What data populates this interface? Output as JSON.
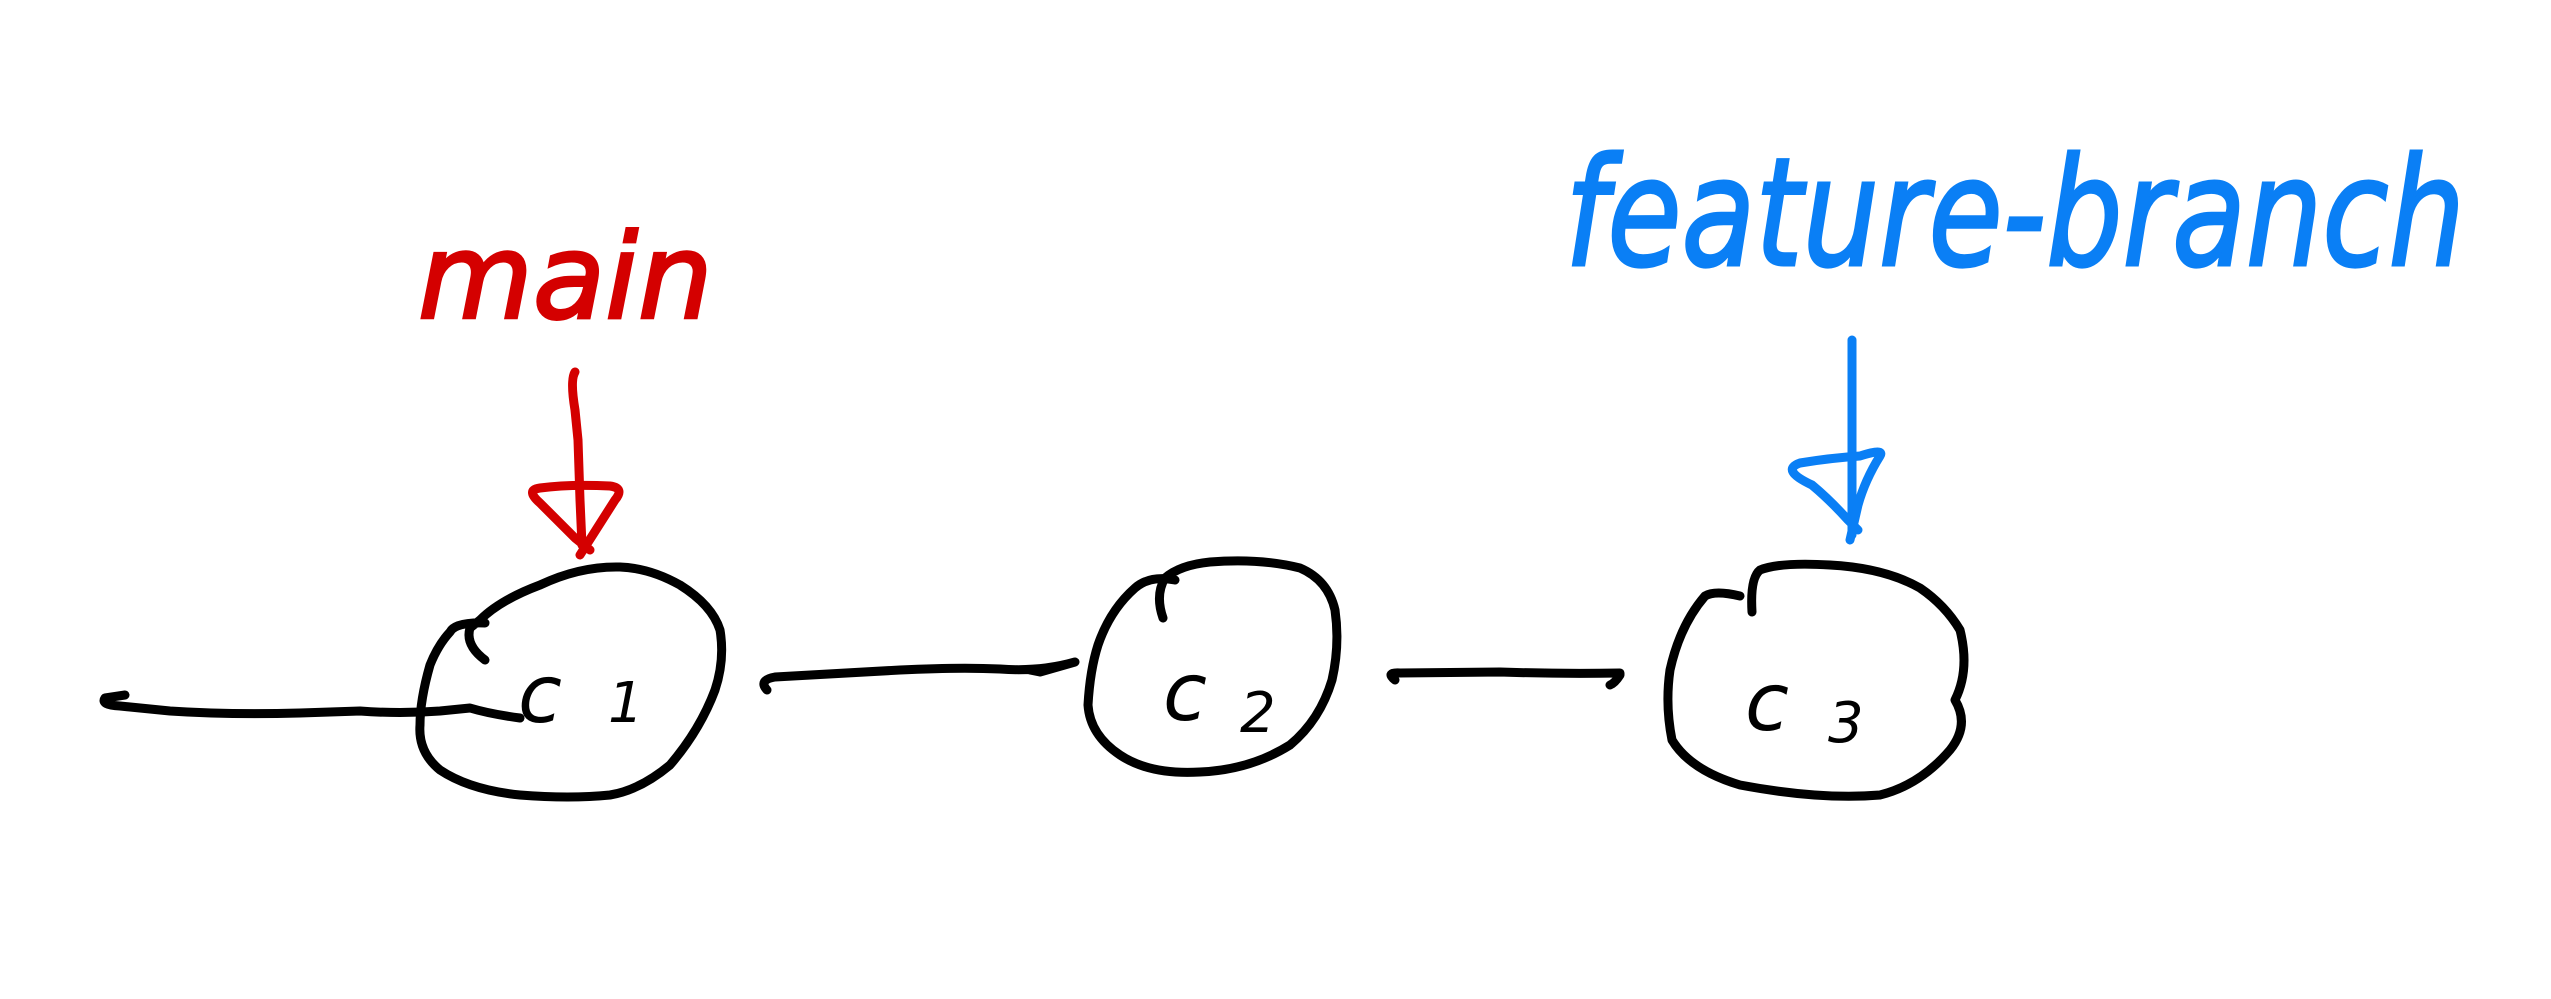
{
  "colors": {
    "ink": "#000000",
    "main": "#d40000",
    "feature": "#0a7ff5",
    "background": "#ffffff"
  },
  "commits": [
    {
      "letter": "c",
      "sub": "1"
    },
    {
      "letter": "c",
      "sub": "2"
    },
    {
      "letter": "c",
      "sub": "3"
    }
  ],
  "branches": [
    {
      "label": "main",
      "color_key": "main",
      "points_to": "c1"
    },
    {
      "label": "feature-branch",
      "color_key": "feature",
      "points_to": "c3"
    }
  ]
}
